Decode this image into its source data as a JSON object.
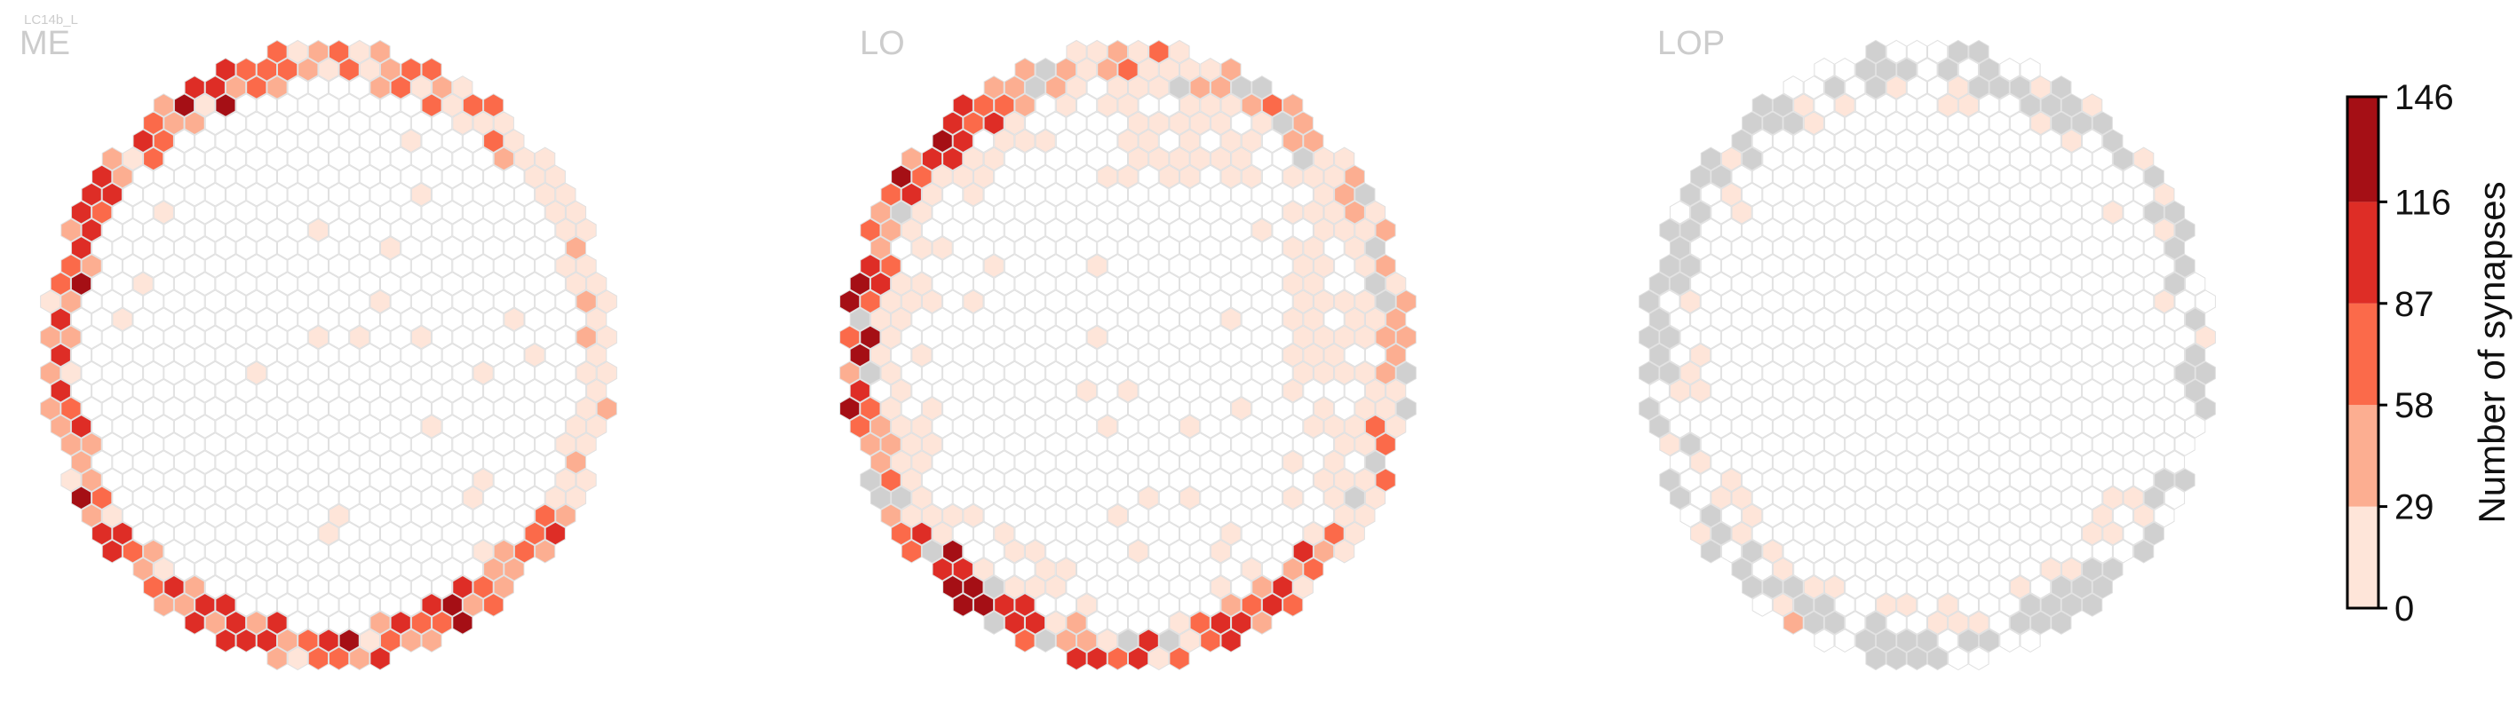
{
  "figure": {
    "cell_type_label": "LC14b_L"
  },
  "chart_data": {
    "type": "heatmap",
    "subtype": "hexagonal columnar map",
    "panels": [
      {
        "name": "ME",
        "profile": "rim",
        "gray_rim": "none"
      },
      {
        "name": "LO",
        "profile": "rim_and_band",
        "gray_rim": "sparse"
      },
      {
        "name": "LOP",
        "profile": "faint_rim",
        "gray_rim": "dense"
      }
    ],
    "colorbar": {
      "title": "Number of synapses",
      "ticks": [
        "0",
        "29",
        "58",
        "87",
        "116",
        "146"
      ],
      "range": [
        0,
        146
      ],
      "bins": [
        {
          "from": 0,
          "to": 29,
          "color": "#fee5d9"
        },
        {
          "from": 29,
          "to": 58,
          "color": "#fcae91"
        },
        {
          "from": 58,
          "to": 87,
          "color": "#fb6a4a"
        },
        {
          "from": 87,
          "to": 116,
          "color": "#de2d26"
        },
        {
          "from": 116,
          "to": 146,
          "color": "#a50f15"
        }
      ]
    },
    "colors": {
      "empty_fill": "#ffffff",
      "empty_edge": "#e0e0e0",
      "zero_fill": "#d0d0d0",
      "panel_label": "#cccccc"
    }
  }
}
